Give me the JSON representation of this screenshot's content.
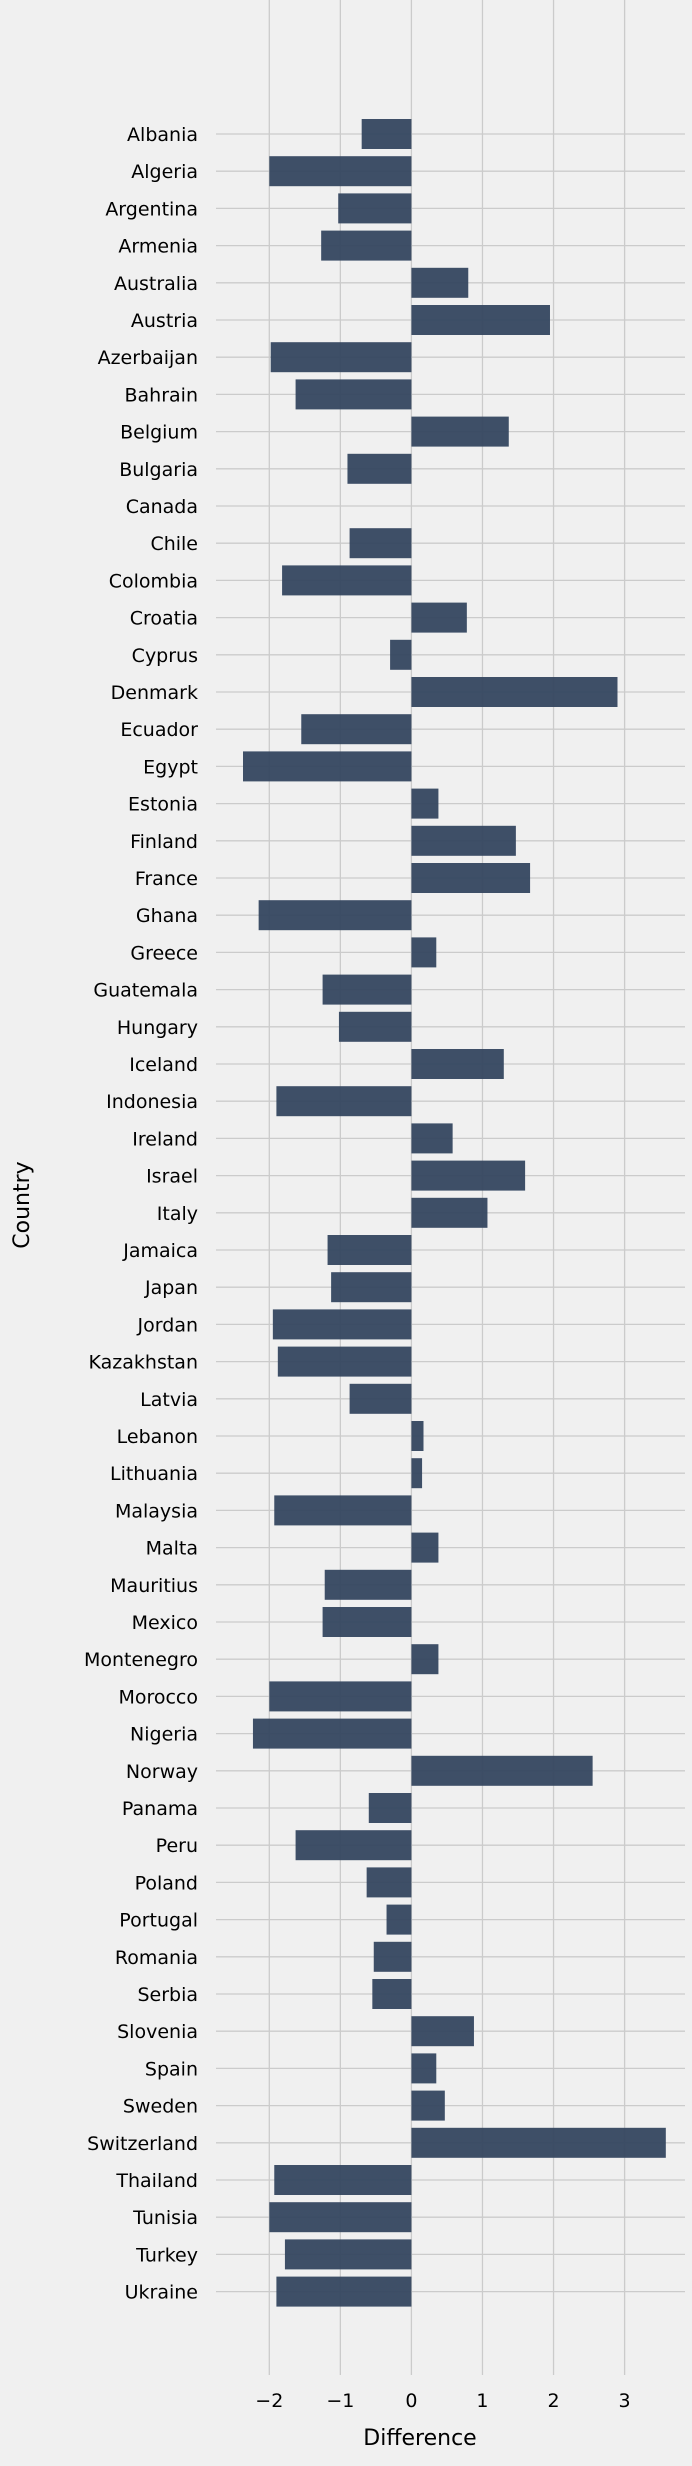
{
  "chart_data": {
    "type": "bar",
    "orientation": "horizontal",
    "title": "",
    "xlabel": "Difference",
    "ylabel": "Country",
    "xlim": [
      -2.75,
      3.85
    ],
    "xticks": [
      -2,
      -1,
      0,
      1,
      2,
      3
    ],
    "xtick_labels": [
      "−2",
      "−1",
      "0",
      "1",
      "2",
      "3"
    ],
    "grid": true,
    "legend": "none",
    "bar_color": "#34465f",
    "categories": [
      "Albania",
      "Algeria",
      "Argentina",
      "Armenia",
      "Australia",
      "Austria",
      "Azerbaijan",
      "Bahrain",
      "Belgium",
      "Bulgaria",
      "Canada",
      "Chile",
      "Colombia",
      "Croatia",
      "Cyprus",
      "Denmark",
      "Ecuador",
      "Egypt",
      "Estonia",
      "Finland",
      "France",
      "Ghana",
      "Greece",
      "Guatemala",
      "Hungary",
      "Iceland",
      "Indonesia",
      "Ireland",
      "Israel",
      "Italy",
      "Jamaica",
      "Japan",
      "Jordan",
      "Kazakhstan",
      "Latvia",
      "Lebanon",
      "Lithuania",
      "Malaysia",
      "Malta",
      "Mauritius",
      "Mexico",
      "Montenegro",
      "Morocco",
      "Nigeria",
      "Norway",
      "Panama",
      "Peru",
      "Poland",
      "Portugal",
      "Romania",
      "Serbia",
      "Slovenia",
      "Spain",
      "Sweden",
      "Switzerland",
      "Thailand",
      "Tunisia",
      "Turkey",
      "Ukraine"
    ],
    "values": [
      -0.7,
      -2.0,
      -1.03,
      -1.27,
      0.8,
      1.95,
      -1.98,
      -1.63,
      1.37,
      -0.9,
      0.0,
      -0.87,
      -1.82,
      0.78,
      -0.3,
      2.9,
      -1.55,
      -2.37,
      0.38,
      1.47,
      1.67,
      -2.15,
      0.35,
      -1.25,
      -1.02,
      1.3,
      -1.9,
      0.58,
      1.6,
      1.07,
      -1.18,
      -1.13,
      -1.95,
      -1.88,
      -0.87,
      0.17,
      0.15,
      -1.93,
      0.38,
      -1.22,
      -1.25,
      0.38,
      -2.0,
      -2.23,
      2.55,
      -0.6,
      -1.63,
      -0.63,
      -0.35,
      -0.53,
      -0.55,
      0.88,
      0.35,
      0.47,
      3.58,
      -1.93,
      -2.0,
      -1.78,
      -1.9
    ]
  }
}
